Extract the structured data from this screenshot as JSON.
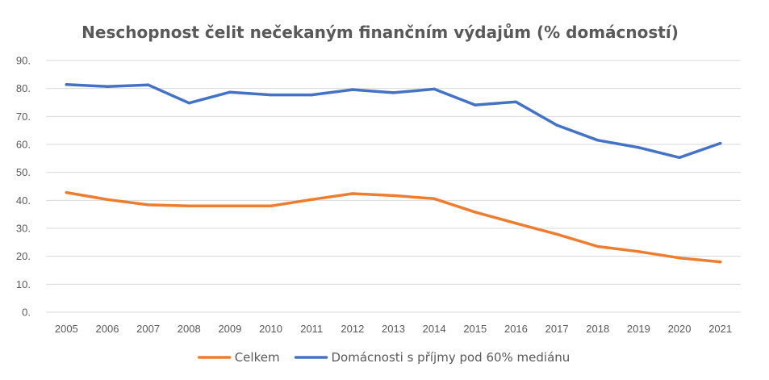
{
  "chart_data": {
    "type": "line",
    "title": "Neschopnost čelit nečekaným finančním výdajům (% domácností)",
    "xlabel": "",
    "ylabel": "",
    "ylim": [
      0,
      90
    ],
    "y_ticks": [
      {
        "value": 90,
        "label": "90."
      },
      {
        "value": 80,
        "label": "80."
      },
      {
        "value": 70,
        "label": "70."
      },
      {
        "value": 60,
        "label": "60."
      },
      {
        "value": 50,
        "label": "50."
      },
      {
        "value": 40,
        "label": "40."
      },
      {
        "value": 30,
        "label": "30."
      },
      {
        "value": 20,
        "label": "20."
      },
      {
        "value": 10,
        "label": "10."
      },
      {
        "value": 0,
        "label": "0."
      }
    ],
    "categories": [
      "2005",
      "2006",
      "2007",
      "2008",
      "2009",
      "2010",
      "2011",
      "2012",
      "2013",
      "2014",
      "2015",
      "2016",
      "2017",
      "2018",
      "2019",
      "2020",
      "2021"
    ],
    "grid": true,
    "legend_position": "bottom",
    "series": [
      {
        "name": "Celkem",
        "color": "#ed7d31",
        "values": [
          42.8,
          40.3,
          38.4,
          38.0,
          38.0,
          38.0,
          40.3,
          42.4,
          41.7,
          40.6,
          35.8,
          31.8,
          27.9,
          23.5,
          21.7,
          19.4,
          18.0
        ]
      },
      {
        "name": "Domácnosti s příjmy pod 60% mediánu",
        "color": "#4472c4",
        "values": [
          81.4,
          80.7,
          81.3,
          74.8,
          78.7,
          77.7,
          77.7,
          79.6,
          78.5,
          79.8,
          74.1,
          75.2,
          66.9,
          61.5,
          58.9,
          55.3,
          60.4
        ]
      }
    ]
  }
}
